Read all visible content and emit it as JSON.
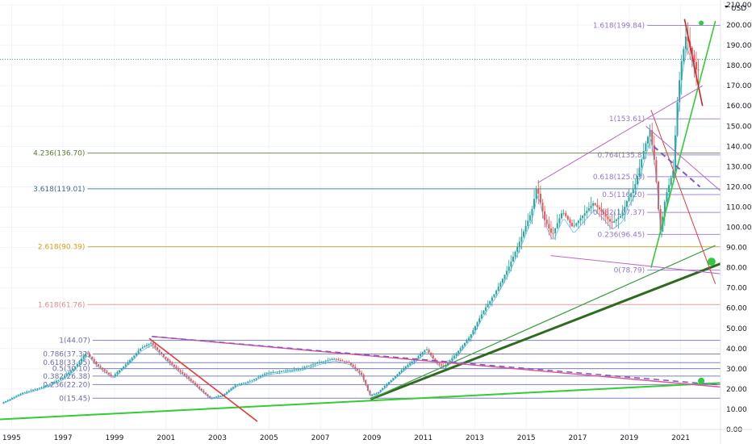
{
  "chart_data": {
    "type": "candlestick",
    "currency_label": "USD",
    "y_range": [
      0,
      210
    ],
    "x_range": [
      1994.6,
      2022.6
    ],
    "y_ticks": [
      "0.00",
      "10.00",
      "20.00",
      "30.00",
      "40.00",
      "50.00",
      "60.00",
      "70.00",
      "80.00",
      "90.00",
      "100.00",
      "110.00",
      "120.00",
      "130.00",
      "140.00",
      "150.00",
      "160.00",
      "170.00",
      "180.00",
      "190.00",
      "200.00",
      "210.00"
    ],
    "x_ticks": [
      "1995",
      "1997",
      "1999",
      "2001",
      "2003",
      "2005",
      "2007",
      "2009",
      "2011",
      "2013",
      "2015",
      "2017",
      "2019",
      "2021"
    ],
    "price_path": [
      [
        1994.7,
        13
      ],
      [
        1995.5,
        18
      ],
      [
        1996.3,
        21
      ],
      [
        1997.0,
        25
      ],
      [
        1997.5,
        30
      ],
      [
        1998.0,
        38
      ],
      [
        1998.4,
        32
      ],
      [
        1999.0,
        26
      ],
      [
        1999.6,
        33
      ],
      [
        2000.1,
        40
      ],
      [
        2000.5,
        43
      ],
      [
        2001.0,
        36
      ],
      [
        2001.5,
        30
      ],
      [
        2001.9,
        26
      ],
      [
        2002.4,
        20
      ],
      [
        2002.8,
        15.5
      ],
      [
        2003.3,
        17
      ],
      [
        2003.8,
        22
      ],
      [
        2004.4,
        24
      ],
      [
        2005.0,
        28
      ],
      [
        2005.7,
        29
      ],
      [
        2006.3,
        30
      ],
      [
        2007.0,
        33
      ],
      [
        2007.6,
        35
      ],
      [
        2008.2,
        33
      ],
      [
        2008.7,
        27
      ],
      [
        2009.0,
        17
      ],
      [
        2009.3,
        18
      ],
      [
        2009.8,
        24
      ],
      [
        2010.3,
        30
      ],
      [
        2010.8,
        35
      ],
      [
        2011.2,
        40
      ],
      [
        2011.6,
        33
      ],
      [
        2011.9,
        31
      ],
      [
        2012.4,
        38
      ],
      [
        2012.9,
        46
      ],
      [
        2013.4,
        58
      ],
      [
        2013.9,
        68
      ],
      [
        2014.4,
        80
      ],
      [
        2014.9,
        95
      ],
      [
        2015.3,
        108
      ],
      [
        2015.5,
        120
      ],
      [
        2015.8,
        104
      ],
      [
        2016.1,
        96
      ],
      [
        2016.5,
        108
      ],
      [
        2016.9,
        100
      ],
      [
        2017.3,
        106
      ],
      [
        2017.7,
        112
      ],
      [
        2018.0,
        108
      ],
      [
        2018.4,
        102
      ],
      [
        2018.8,
        106
      ],
      [
        2019.0,
        113
      ],
      [
        2019.3,
        120
      ],
      [
        2019.7,
        140
      ],
      [
        2019.9,
        148
      ],
      [
        2020.1,
        130
      ],
      [
        2020.3,
        97
      ],
      [
        2020.5,
        115
      ],
      [
        2020.8,
        128
      ],
      [
        2020.95,
        160
      ],
      [
        2021.1,
        180
      ],
      [
        2021.3,
        195
      ],
      [
        2021.5,
        187
      ],
      [
        2021.7,
        178
      ]
    ],
    "fib_levels": [
      {
        "label": "1.618(199.84)",
        "value": 199.84,
        "x0": 2019.75,
        "color": "#9575cd"
      },
      {
        "label": "1(153.61)",
        "value": 153.61,
        "x0": 2019.75,
        "color": "#9575cd"
      },
      {
        "label": "0.764(135.8)",
        "value": 135.8,
        "x0": 2019.75,
        "color": "#9575cd"
      },
      {
        "label": "0.618(125.03)",
        "value": 125.03,
        "x0": 2019.75,
        "color": "#9575cd"
      },
      {
        "label": "0.5(116.20)",
        "value": 116.2,
        "x0": 2019.75,
        "color": "#9575cd"
      },
      {
        "label": "0.382(107.37)",
        "value": 107.37,
        "x0": 2019.75,
        "color": "#9575cd"
      },
      {
        "label": "0.236(96.45)",
        "value": 96.45,
        "x0": 2019.75,
        "color": "#9575cd"
      },
      {
        "label": "0(78.79)",
        "value": 78.79,
        "x0": 2019.75,
        "color": "#9575cd"
      },
      {
        "label": "4.236(136.70)",
        "value": 136.7,
        "x0": 1998.0,
        "color": "#5b7a2f"
      },
      {
        "label": "3.618(119.01)",
        "value": 119.01,
        "x0": 1998.0,
        "color": "#3a6e8f"
      },
      {
        "label": "2.618(90.39)",
        "value": 90.39,
        "x0": 1998.0,
        "color": "#d4a017"
      },
      {
        "label": "1.618(61.76)",
        "value": 61.76,
        "x0": 1998.0,
        "color": "#e08a8a"
      },
      {
        "label": "1(44.07)",
        "value": 44.07,
        "x0": 1998.2,
        "color": "#6a6ab0"
      },
      {
        "label": "0.786(37.32)",
        "value": 37.32,
        "x0": 1998.2,
        "color": "#6a6ab0"
      },
      {
        "label": "0.618(33.05)",
        "value": 33.05,
        "x0": 1998.2,
        "color": "#6a6ab0"
      },
      {
        "label": "0.5(30.10)",
        "value": 30.1,
        "x0": 1998.2,
        "color": "#6a6ab0"
      },
      {
        "label": "0.382(26.38)",
        "value": 26.38,
        "x0": 1998.2,
        "color": "#6a6ab0"
      },
      {
        "label": "0.236(22.20)",
        "value": 22.2,
        "x0": 1998.2,
        "color": "#6a6ab0"
      },
      {
        "label": "0(15.45)",
        "value": 15.45,
        "x0": 1998.2,
        "color": "#6a6ab0"
      }
    ],
    "trend_lines": [
      {
        "from": [
          1994.6,
          5
        ],
        "to": [
          2022.6,
          23
        ],
        "color": "#32cd32",
        "width": 2
      },
      {
        "from": [
          2009.0,
          15
        ],
        "to": [
          2022.6,
          82
        ],
        "color": "#2e6b1f",
        "width": 3
      },
      {
        "from": [
          2009.0,
          15
        ],
        "to": [
          2022.4,
          91
        ],
        "color": "#43a047",
        "width": 1.3
      },
      {
        "from": [
          2019.9,
          80
        ],
        "to": [
          2022.4,
          202
        ],
        "color": "#32cd32",
        "width": 1.6
      },
      {
        "from": [
          2000.5,
          46
        ],
        "to": [
          2022.6,
          21
        ],
        "color": "#e05297",
        "width": 1.4
      },
      {
        "from": [
          2000.4,
          45
        ],
        "to": [
          2004.6,
          4
        ],
        "color": "#e53935",
        "width": 1.6
      },
      {
        "from": [
          2021.2,
          203
        ],
        "to": [
          2021.9,
          160
        ],
        "color": "#c62828",
        "width": 1.6
      },
      {
        "from": [
          2019.9,
          158
        ],
        "to": [
          2022.4,
          72
        ],
        "color": "#e53935",
        "width": 1
      },
      {
        "from": [
          2015.5,
          122
        ],
        "to": [
          2021.9,
          170
        ],
        "color": "#ba68c8",
        "width": 1
      },
      {
        "from": [
          2016.0,
          86
        ],
        "to": [
          2022.6,
          77
        ],
        "color": "#ba68c8",
        "width": 1
      },
      {
        "from": [
          2019.7,
          150
        ],
        "to": [
          2022.6,
          118
        ],
        "color": "#ba68c8",
        "width": 1
      }
    ],
    "dashed_lines": [
      {
        "from": [
          2000.5,
          46
        ],
        "to": [
          2022.6,
          22
        ],
        "color": "#7e57c2",
        "width": 1.5
      },
      {
        "from": [
          2020.0,
          140
        ],
        "to": [
          2021.8,
          120
        ],
        "color": "#7e57c2",
        "width": 2
      }
    ],
    "markers": [
      {
        "at": [
          2021.85,
          201
        ],
        "color": "#2ecc40",
        "r": 3
      },
      {
        "at": [
          2022.25,
          83
        ],
        "color": "#2ecc40",
        "r": 5
      },
      {
        "at": [
          2021.85,
          24
        ],
        "color": "#2ecc40",
        "r": 4
      }
    ],
    "current_price_line": 183,
    "grid": true
  }
}
